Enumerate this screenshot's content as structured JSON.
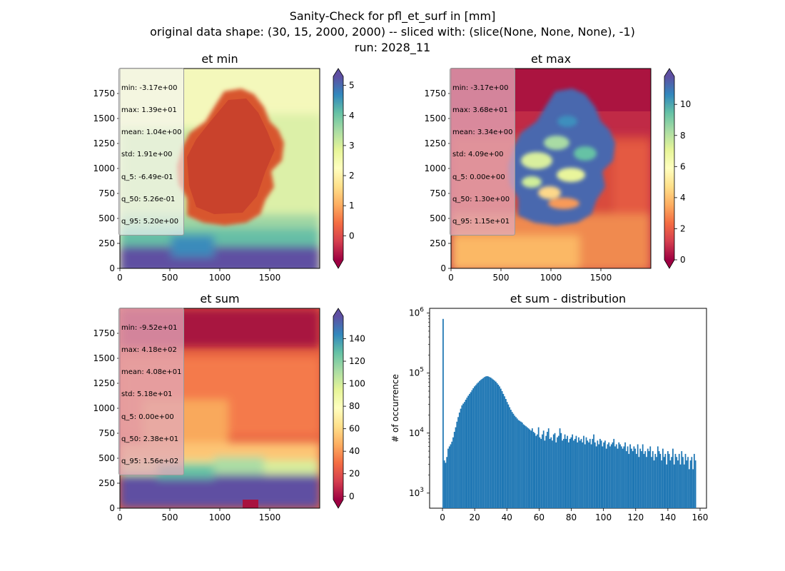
{
  "figure": {
    "suptitle_lines": [
      "Sanity-Check for pfl_et_surf in [mm]",
      "original data shape: (30, 15, 2000, 2000) -- sliced with: (slice(None, None, None), -1)",
      "run: 2028_11"
    ]
  },
  "colors": {
    "histogram_bar": "#1f77b4",
    "spectral_colormap": [
      "#9e0142",
      "#d53e4f",
      "#f46d43",
      "#fdae61",
      "#fee08b",
      "#ffffbf",
      "#e6f598",
      "#abdda4",
      "#66c2a5",
      "#3288bd",
      "#5e4fa2"
    ]
  },
  "chart_data": [
    {
      "type": "heatmap",
      "title": "et min",
      "colormap": "Spectral",
      "colorbar_extend": "both",
      "colorbar_range": [
        -0.8,
        5.3
      ],
      "colorbar_ticks": [
        0,
        1,
        2,
        3,
        4,
        5
      ],
      "xlim": [
        0,
        2000
      ],
      "ylim": [
        0,
        2000
      ],
      "xticks": [
        0,
        500,
        1000,
        1500
      ],
      "yticks": [
        0,
        250,
        500,
        750,
        1000,
        1250,
        1500,
        1750
      ],
      "stats": [
        "min: -3.17e+00",
        "max: 1.39e+01",
        "mean: 1.04e+00",
        "std: 1.91e+00",
        "q_5: -6.49e-01",
        "q_50: 5.26e-01",
        "q_95: 5.20e+00"
      ]
    },
    {
      "type": "heatmap",
      "title": "et max",
      "colormap": "Spectral",
      "colorbar_extend": "both",
      "colorbar_range": [
        0,
        11.8
      ],
      "colorbar_ticks": [
        0,
        2,
        4,
        6,
        8,
        10
      ],
      "xlim": [
        0,
        2000
      ],
      "ylim": [
        0,
        2000
      ],
      "xticks": [
        0,
        500,
        1000,
        1500
      ],
      "yticks": [
        0,
        250,
        500,
        750,
        1000,
        1250,
        1500,
        1750
      ],
      "stats": [
        "min: -3.17e+00",
        "max: 3.68e+01",
        "mean: 3.34e+00",
        "std: 4.09e+00",
        "q_5: 0.00e+00",
        "q_50: 1.30e+00",
        "q_95: 1.15e+01"
      ]
    },
    {
      "type": "heatmap",
      "title": "et sum",
      "colormap": "Spectral",
      "colorbar_extend": "both",
      "colorbar_range": [
        -3,
        160
      ],
      "colorbar_ticks": [
        0,
        20,
        40,
        60,
        80,
        100,
        120,
        140
      ],
      "xlim": [
        0,
        2000
      ],
      "ylim": [
        0,
        2000
      ],
      "xticks": [
        0,
        500,
        1000,
        1500
      ],
      "yticks": [
        0,
        250,
        500,
        750,
        1000,
        1250,
        1500,
        1750
      ],
      "stats": [
        "min: -9.52e+01",
        "max: 4.18e+02",
        "mean: 4.08e+01",
        "std: 5.18e+01",
        "q_5: 0.00e+00",
        "q_50: 2.38e+01",
        "q_95: 1.56e+02"
      ]
    },
    {
      "type": "bar",
      "title": "et sum - distribution",
      "xlabel": "",
      "ylabel": "# of occurrence",
      "yscale": "log",
      "xlim": [
        -8,
        164
      ],
      "ylim": [
        560,
        1200000
      ],
      "xticks": [
        0,
        20,
        40,
        60,
        80,
        100,
        120,
        140,
        160
      ],
      "yticks": [
        1000,
        10000,
        100000,
        1000000
      ],
      "ytick_labels": [
        "10^3",
        "10^4",
        "10^5",
        "10^6"
      ],
      "bin_start": 0,
      "bin_width": 0.78,
      "counts": [
        800000,
        3500,
        3200,
        4000,
        5500,
        6000,
        6500,
        7200,
        8500,
        10500,
        12500,
        15500,
        18500,
        22000,
        25500,
        29000,
        31000,
        33000,
        36000,
        39000,
        42000,
        45000,
        48000,
        52000,
        56000,
        60000,
        63000,
        67000,
        70000,
        74000,
        77000,
        80000,
        83000,
        86000,
        88000,
        89000,
        88000,
        86000,
        84000,
        81000,
        78000,
        75000,
        72000,
        68000,
        64000,
        60000,
        55000,
        50000,
        45000,
        41000,
        37000,
        33000,
        30000,
        27000,
        24500,
        22500,
        21000,
        19500,
        18500,
        17500,
        16500,
        16000,
        15500,
        15000,
        14000,
        13500,
        13000,
        12500,
        12000,
        11500,
        11000,
        12000,
        10500,
        10000,
        9000,
        9500,
        12500,
        8500,
        8000,
        9500,
        11000,
        7500,
        9000,
        10500,
        12000,
        8000,
        8500,
        7500,
        9500,
        10000,
        7000,
        8500,
        9000,
        12000,
        10000,
        7500,
        8000,
        9500,
        8000,
        9000,
        7000,
        8000,
        8500,
        9500,
        7500,
        8000,
        9000,
        7000,
        8500,
        7500,
        8000,
        7000,
        9000,
        6500,
        8500,
        7500,
        7000,
        8000,
        6500,
        8000,
        9500,
        7000,
        6000,
        7500,
        6500,
        8000,
        7500,
        6000,
        7000,
        7500,
        5500,
        6500,
        7000,
        6000,
        6500,
        7000,
        8000,
        6000,
        6500,
        5500,
        7000,
        6500,
        6000,
        5500,
        6000,
        7000,
        5000,
        6000,
        4500,
        6500,
        5500,
        5000,
        6000,
        5500,
        4500,
        6500,
        4000,
        5500,
        5000,
        6500,
        4500,
        5000,
        4000,
        5500,
        5000,
        6000,
        4000,
        5000,
        3500,
        4500,
        4000,
        6000,
        5000,
        4500,
        3500,
        5500,
        4000,
        4500,
        3000,
        5000,
        4500,
        3500,
        4000,
        5500,
        3000,
        4500,
        4000,
        3500,
        4500,
        3000,
        5000,
        4000,
        3000,
        4500,
        3500,
        4000,
        2500,
        3500,
        4000,
        2500,
        4500,
        3500
      ]
    }
  ]
}
